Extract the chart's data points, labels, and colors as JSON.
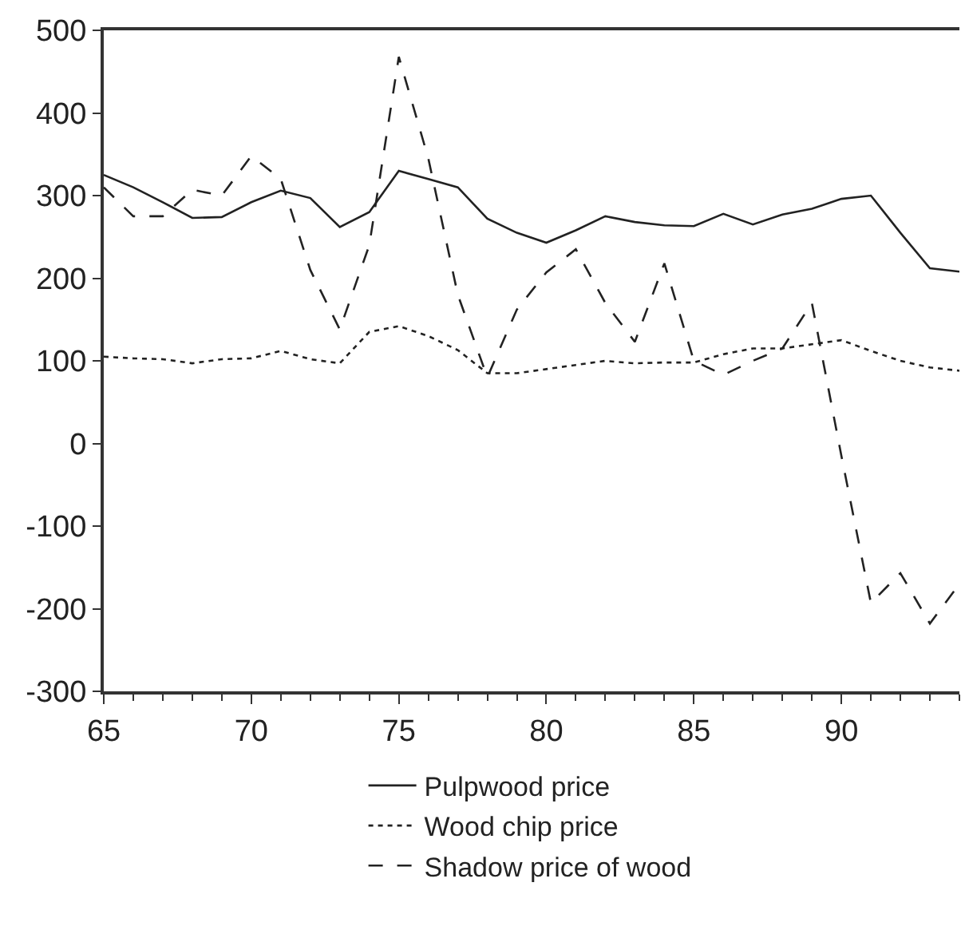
{
  "chart_data": {
    "type": "line",
    "x": [
      65,
      66,
      67,
      68,
      69,
      70,
      71,
      72,
      73,
      74,
      75,
      76,
      77,
      78,
      79,
      80,
      81,
      82,
      83,
      84,
      85,
      86,
      87,
      88,
      89,
      90,
      91,
      92,
      93,
      94
    ],
    "series": [
      {
        "name": "Pulpwood price",
        "color": "#222222",
        "line_style": "solid",
        "values": [
          325,
          310,
          292,
          273,
          274,
          292,
          306,
          297,
          262,
          280,
          330,
          320,
          310,
          272,
          255,
          243,
          258,
          275,
          268,
          264,
          263,
          278,
          265,
          277,
          284,
          296,
          300,
          255,
          212,
          208
        ]
      },
      {
        "name": "Wood chip price",
        "color": "#222222",
        "line_style": "dotted",
        "values": [
          105,
          103,
          102,
          97,
          102,
          103,
          112,
          102,
          97,
          135,
          142,
          130,
          113,
          85,
          85,
          90,
          95,
          100,
          97,
          98,
          98,
          108,
          115,
          115,
          120,
          125,
          112,
          100,
          92,
          88
        ]
      },
      {
        "name": "Shadow price of wood",
        "color": "#222222",
        "line_style": "dashed",
        "values": [
          310,
          275,
          275,
          307,
          300,
          348,
          320,
          210,
          138,
          240,
          468,
          345,
          180,
          80,
          162,
          207,
          235,
          170,
          123,
          218,
          100,
          83,
          100,
          115,
          170,
          -15,
          -193,
          -157,
          -218,
          -170
        ]
      }
    ],
    "xlim": [
      65,
      94
    ],
    "ylim": [
      -300,
      500
    ],
    "xticks": [
      65,
      70,
      75,
      80,
      85,
      90
    ],
    "yticks": [
      -300,
      -200,
      -100,
      0,
      100,
      200,
      300,
      400,
      500
    ],
    "grid": false,
    "legend": "bottom",
    "marker": "none"
  }
}
